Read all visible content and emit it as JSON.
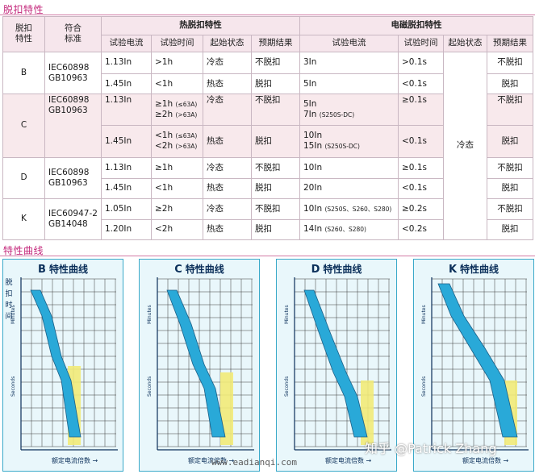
{
  "section1": {
    "title": "脱扣特性"
  },
  "section2": {
    "title": "特性曲线"
  },
  "table": {
    "head": {
      "curve": "脱扣\n特性",
      "standard": "符合\n标准",
      "thermal_group": "热脱扣特性",
      "magnetic_group": "电磁脱扣特性",
      "test_current": "试验电流",
      "test_time": "试验时间",
      "start_state": "起始状态",
      "expected": "预期结果"
    },
    "rows": [
      {
        "curve": "B",
        "std1": "IEC60898",
        "std2": "GB10963",
        "t_cur": "1.13In",
        "t_time": ">1h",
        "t_state": "冷态",
        "t_res": "不脱扣",
        "m_cur": "3In",
        "m_time": ">0.1s",
        "m_res": "不脱扣"
      },
      {
        "t_cur": "1.45In",
        "t_time": "<1h",
        "t_state": "热态",
        "t_res": "脱扣",
        "m_cur": "5In",
        "m_time": "<0.1s",
        "m_res": "脱扣"
      },
      {
        "curve": "C",
        "std1": "IEC60898",
        "std2": "GB10963",
        "t_cur": "1.13In",
        "t_time_a": "≥1h",
        "t_time_a_note": "(≤63A)",
        "t_time_b": "≥2h",
        "t_time_b_note": "(>63A)",
        "t_state": "冷态",
        "t_res": "不脱扣",
        "m_cur_a": "5In",
        "m_cur_b": "7In",
        "m_cur_b_note": "(S250S-DC)",
        "m_time": "≥0.1s",
        "m_res": "不脱扣"
      },
      {
        "t_cur": "1.45In",
        "t_time_a": "<1h",
        "t_time_a_note": "(≤63A)",
        "t_time_b": "<2h",
        "t_time_b_note": "(>63A)",
        "t_state": "热态",
        "t_res": "脱扣",
        "m_cur_a": "10In",
        "m_cur_b": "15In",
        "m_cur_b_note": "(S250S-DC)",
        "m_time": "<0.1s",
        "m_res": "脱扣"
      },
      {
        "curve": "D",
        "std1": "IEC60898",
        "std2": "GB10963",
        "t_cur": "1.13In",
        "t_time": "≥1h",
        "t_state": "冷态",
        "t_res": "不脱扣",
        "m_cur": "10In",
        "m_time": "≥0.1s",
        "m_res": "不脱扣"
      },
      {
        "t_cur": "1.45In",
        "t_time": "<1h",
        "t_state": "热态",
        "t_res": "脱扣",
        "m_cur": "20In",
        "m_time": "<0.1s",
        "m_res": "脱扣"
      },
      {
        "curve": "K",
        "std1": "IEC60947-2",
        "std2": "GB14048",
        "t_cur": "1.05In",
        "t_time": "≥2h",
        "t_state": "冷态",
        "t_res": "不脱扣",
        "m_cur": "10In",
        "m_cur_note": "(S250S、S260、S280)",
        "m_time": "≥0.2s",
        "m_res": "不脱扣"
      },
      {
        "t_cur": "1.20In",
        "t_time": "<2h",
        "t_state": "热态",
        "t_res": "脱扣",
        "m_cur": "14In",
        "m_cur_note": "(S260、S280)",
        "m_time": "<0.2s",
        "m_res": "脱扣"
      }
    ],
    "magnetic_start_state": "冷态"
  },
  "curves": [
    {
      "letter": "B",
      "title": "特性曲线"
    },
    {
      "letter": "C",
      "title": "特性曲线"
    },
    {
      "letter": "D",
      "title": "特性曲线"
    },
    {
      "letter": "K",
      "title": "特性曲线"
    }
  ],
  "curve_axis": {
    "vertical": "脱扣时间",
    "horizontal": "额定电流倍数",
    "minutes": "Minutes",
    "seconds": "Seconds"
  },
  "watermarks": {
    "site": "www.eadianqi.com",
    "author": "知乎 @Patrick Zhang"
  },
  "colors": {
    "accent": "#c3267a",
    "band": "#29a9d8",
    "yellow": "#f2ea78",
    "grid": "#3a3a3a",
    "panel": "#e9f7fb"
  }
}
